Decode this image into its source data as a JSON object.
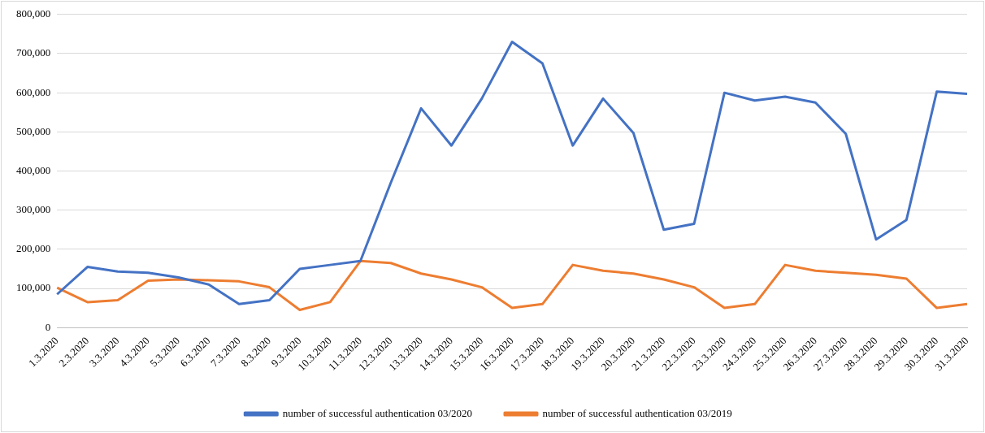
{
  "chart_data": {
    "type": "line",
    "categories": [
      "1.3.2020",
      "2.3.2020",
      "3.3.2020",
      "4.3.2020",
      "5.3.2020",
      "6.3.2020",
      "7.3.2020",
      "8.3.2020",
      "9.3.2020",
      "10.3.2020",
      "11.3.2020",
      "12.3.2020",
      "13.3.2020",
      "14.3.2020",
      "15.3.2020",
      "16.3.2020",
      "17.3.2020",
      "18.3.2020",
      "19.3.2020",
      "20.3.2020",
      "21.3.2020",
      "22.3.2020",
      "23.3.2020",
      "24.3.2020",
      "25.3.2020",
      "26.3.2020",
      "27.3.2020",
      "28.3.2020",
      "29.3.2020",
      "30.3.2020",
      "31.3.2020"
    ],
    "series": [
      {
        "name": "number of successful authentication 03/2020",
        "color": "#4472c4",
        "values": [
          85000,
          155000,
          143000,
          140000,
          128000,
          110000,
          60000,
          70000,
          150000,
          160000,
          170000,
          370000,
          560000,
          465000,
          585000,
          730000,
          675000,
          465000,
          585000,
          497000,
          250000,
          265000,
          600000,
          580000,
          590000,
          575000,
          495000,
          225000,
          275000,
          603000,
          597000
        ]
      },
      {
        "name": "number of successful authentication 03/2019",
        "color": "#ed7d31",
        "values": [
          102000,
          65000,
          70000,
          120000,
          123000,
          121000,
          118000,
          103000,
          45000,
          65000,
          170000,
          165000,
          138000,
          123000,
          103000,
          50000,
          60000,
          160000,
          145000,
          138000,
          123000,
          103000,
          50000,
          60000,
          160000,
          145000,
          140000,
          135000,
          125000,
          50000,
          60000
        ]
      }
    ],
    "ylim": [
      0,
      800000
    ],
    "yticks": [
      0,
      {
        "value": 100000,
        "label": "100,000"
      },
      {
        "value": 200000,
        "label": "200,000"
      },
      {
        "value": 300000,
        "label": "300,000"
      },
      {
        "value": 400000,
        "label": "400,000"
      },
      {
        "value": 500000,
        "label": "500,000"
      },
      {
        "value": 600000,
        "label": "600,000"
      },
      {
        "value": 700000,
        "label": "700,000"
      },
      {
        "value": 800000,
        "label": "800,000"
      }
    ],
    "grid": "y",
    "legend": "bottom",
    "marker": "none",
    "line_style": "solid"
  }
}
